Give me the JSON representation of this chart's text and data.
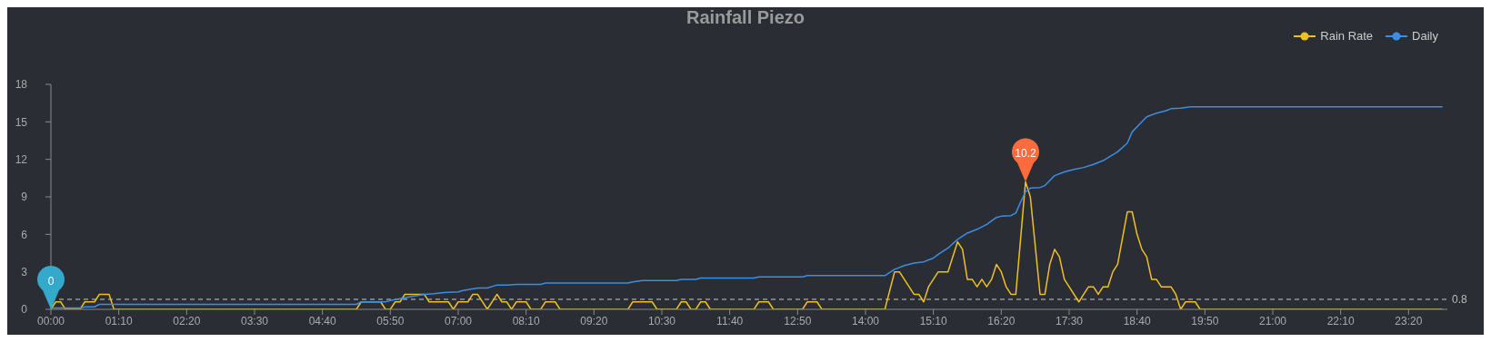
{
  "chart_data": {
    "type": "line",
    "title": "Rainfall Piezo",
    "legend": "top right",
    "grid": false,
    "marker": "none",
    "line_style": "solid",
    "xlim": [
      0,
      24
    ],
    "xticks": [
      {
        "value": 0,
        "label": "00:00"
      },
      {
        "value": 1.1667,
        "label": "01:10"
      },
      {
        "value": 2.3333,
        "label": "02:20"
      },
      {
        "value": 3.5,
        "label": "03:30"
      },
      {
        "value": 4.6667,
        "label": "04:40"
      },
      {
        "value": 5.8333,
        "label": "05:50"
      },
      {
        "value": 7,
        "label": "07:00"
      },
      {
        "value": 8.1667,
        "label": "08:10"
      },
      {
        "value": 9.3333,
        "label": "09:20"
      },
      {
        "value": 10.5,
        "label": "10:30"
      },
      {
        "value": 11.6667,
        "label": "11:40"
      },
      {
        "value": 12.8333,
        "label": "12:50"
      },
      {
        "value": 14,
        "label": "14:00"
      },
      {
        "value": 15.1667,
        "label": "15:10"
      },
      {
        "value": 16.3333,
        "label": "16:20"
      },
      {
        "value": 17.5,
        "label": "17:30"
      },
      {
        "value": 18.6667,
        "label": "18:40"
      },
      {
        "value": 19.8333,
        "label": "19:50"
      },
      {
        "value": 21,
        "label": "21:00"
      },
      {
        "value": 22.1667,
        "label": "22:10"
      },
      {
        "value": 23.3333,
        "label": "23:20"
      }
    ],
    "ylim": [
      0,
      18
    ],
    "yticks": [
      0,
      3,
      6,
      9,
      12,
      15,
      18
    ],
    "series": [
      {
        "name": "Rain Rate",
        "color": "#f0c020",
        "x": [
          0,
          0.083,
          0.167,
          0.25,
          0.5,
          0.583,
          0.75,
          0.833,
          1,
          1.083,
          5.25,
          5.333,
          5.667,
          5.75,
          5.833,
          5.917,
          6,
          6.083,
          6.417,
          6.5,
          6.833,
          6.917,
          7,
          7.167,
          7.25,
          7.333,
          7.5,
          7.667,
          7.75,
          7.833,
          7.917,
          8,
          8.167,
          8.25,
          8.417,
          8.5,
          8.667,
          8.75,
          9.917,
          10,
          10.333,
          10.417,
          10.75,
          10.833,
          10.917,
          11,
          11.083,
          11.167,
          11.25,
          11.333,
          12.083,
          12.167,
          12.333,
          12.417,
          12.917,
          13,
          13.167,
          13.25,
          14.333,
          14.5,
          14.583,
          14.833,
          14.917,
          15,
          15.083,
          15.25,
          15.417,
          15.583,
          15.667,
          15.75,
          15.833,
          15.917,
          16,
          16.083,
          16.167,
          16.25,
          16.333,
          16.417,
          16.5,
          16.583,
          16.75,
          16.833,
          17,
          17.083,
          17.167,
          17.25,
          17.333,
          17.417,
          17.667,
          17.75,
          17.833,
          17.917,
          18,
          18.083,
          18.167,
          18.25,
          18.333,
          18.5,
          18.583,
          18.667,
          18.75,
          18.833,
          18.917,
          19,
          19.083,
          19.25,
          19.333,
          19.417,
          19.5,
          19.667,
          19.75,
          23.917
        ],
        "values": [
          0,
          0.6,
          0.6,
          0,
          0,
          0.6,
          0.6,
          1.2,
          1.2,
          0,
          0,
          0.6,
          0.6,
          0,
          0,
          0.6,
          0.6,
          1.2,
          1.2,
          0.6,
          0.6,
          0,
          0.6,
          0.6,
          1.2,
          1.2,
          0,
          1.2,
          0.6,
          0.6,
          0,
          0.6,
          0.6,
          0,
          0,
          0.6,
          0.6,
          0,
          0,
          0.6,
          0.6,
          0,
          0,
          0.6,
          0.6,
          0,
          0,
          0.6,
          0.6,
          0,
          0,
          0.6,
          0.6,
          0,
          0,
          0.6,
          0.6,
          0,
          0,
          3.0,
          3.0,
          1.2,
          1.2,
          0.6,
          1.8,
          3.0,
          3.0,
          5.4,
          4.8,
          2.4,
          2.4,
          1.8,
          2.4,
          1.8,
          2.4,
          3.6,
          3.0,
          1.8,
          1.2,
          1.2,
          10.2,
          9.0,
          1.2,
          1.2,
          3.6,
          4.8,
          4.2,
          2.4,
          0.6,
          1.2,
          1.8,
          1.8,
          1.2,
          1.8,
          1.8,
          3.0,
          3.6,
          7.8,
          7.8,
          6.0,
          4.8,
          4.2,
          2.4,
          2.4,
          1.8,
          1.8,
          1.2,
          0,
          0.6,
          0.6,
          0,
          0
        ]
      },
      {
        "name": "Daily",
        "color": "#3a8ee6",
        "x": [
          0,
          0.5,
          0.583,
          0.75,
          0.833,
          5.25,
          5.333,
          5.75,
          5.833,
          6,
          6.167,
          6.417,
          6.583,
          6.75,
          7,
          7.083,
          7.333,
          7.5,
          7.667,
          7.833,
          8,
          8.417,
          8.5,
          9.917,
          10,
          10.167,
          10.75,
          10.833,
          11.083,
          11.167,
          12.083,
          12.167,
          12.917,
          13,
          14.333,
          14.5,
          14.667,
          14.833,
          15,
          15.167,
          15.25,
          15.417,
          15.583,
          15.75,
          15.917,
          16.083,
          16.25,
          16.333,
          16.5,
          16.583,
          16.667,
          16.75,
          16.833,
          17,
          17.083,
          17.25,
          17.417,
          17.583,
          17.75,
          17.917,
          18.083,
          18.333,
          18.5,
          18.583,
          18.75,
          18.833,
          19,
          19.167,
          19.25,
          19.417,
          19.583,
          23.917
        ],
        "values": [
          0.1,
          0.1,
          0.2,
          0.2,
          0.4,
          0.4,
          0.6,
          0.6,
          0.7,
          0.85,
          1.0,
          1.2,
          1.25,
          1.35,
          1.4,
          1.5,
          1.7,
          1.7,
          1.95,
          1.95,
          2.0,
          2.0,
          2.1,
          2.1,
          2.2,
          2.3,
          2.3,
          2.4,
          2.4,
          2.5,
          2.5,
          2.6,
          2.6,
          2.7,
          2.7,
          3.2,
          3.5,
          3.7,
          3.8,
          4.1,
          4.4,
          4.9,
          5.6,
          6.1,
          6.4,
          6.8,
          7.35,
          7.45,
          7.5,
          7.7,
          8.6,
          9.4,
          9.7,
          9.75,
          9.9,
          10.7,
          11.0,
          11.2,
          11.35,
          11.6,
          11.9,
          12.6,
          13.3,
          14.2,
          15.0,
          15.4,
          15.7,
          15.9,
          16.05,
          16.1,
          16.2,
          16.2
        ]
      }
    ],
    "ref_lines": [
      {
        "axis": "y",
        "value": 0.8,
        "label": "0.8",
        "line_style": "dashed",
        "color": "#cccccc"
      }
    ],
    "annotations": [
      {
        "text": "10.2",
        "x": 16.75,
        "y": 10.2
      },
      {
        "text": "0",
        "x": 0,
        "y": 0
      }
    ]
  }
}
